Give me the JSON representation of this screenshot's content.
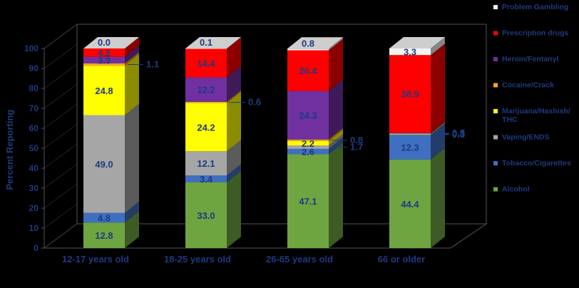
{
  "chart_data": {
    "type": "bar",
    "stacked": true,
    "three_d": true,
    "ylabel": "Percent Reporting",
    "ylim": [
      0,
      100
    ],
    "yticks": [
      "0",
      "10",
      "20",
      "30",
      "40",
      "50",
      "60",
      "70",
      "80",
      "90",
      "100"
    ],
    "categories": [
      "12-17 years old",
      "18-25 years old",
      "26-65 years old",
      "66 or older"
    ],
    "legend_position": "right",
    "series": [
      {
        "name": "Alcohol",
        "color": "#6FA541",
        "values": [
          12.8,
          33.0,
          47.1,
          44.4
        ],
        "labels": [
          "12.8",
          "33.0",
          "47.1",
          "44.4"
        ]
      },
      {
        "name": "Tobacco/Cigarettes",
        "color": "#3E6FC1",
        "values": [
          4.8,
          3.4,
          2.6,
          12.3
        ],
        "labels": [
          "4.8",
          "3.4",
          "2.6",
          "12.3"
        ]
      },
      {
        "name": "Vaping/ENDS",
        "color": "#A6A6A6",
        "values": [
          49.0,
          12.1,
          1.7,
          0.3
        ],
        "labels": [
          "49.0",
          "12.1",
          "1.7",
          "0.3"
        ]
      },
      {
        "name": "Marijuana/Hashish/THC",
        "color": "#FFFF00",
        "values": [
          24.8,
          24.2,
          2.2,
          0.3
        ],
        "labels": [
          "24.8",
          "24.2",
          "2.2",
          "0.3"
        ]
      },
      {
        "name": "Cocaine/Crack",
        "color": "#F5A623",
        "values": [
          1.1,
          0.6,
          0.8,
          0.0
        ],
        "labels": [
          "1.1",
          "0.6",
          "0.8",
          "0.0"
        ]
      },
      {
        "name": "Heroin/Fentanyl",
        "color": "#7030A0",
        "values": [
          3.3,
          12.2,
          24.3,
          0.5
        ],
        "labels": [
          "3.3",
          "12.2",
          "24.3",
          "0.5"
        ]
      },
      {
        "name": "Prescription drugs",
        "color": "#FF0000",
        "values": [
          4.2,
          14.4,
          20.4,
          38.9
        ],
        "labels": [
          "4.2",
          "14.4",
          "20.4",
          "38.9"
        ]
      },
      {
        "name": "Problem Gambling",
        "color": "#F2F2F2",
        "values": [
          0.0,
          0.1,
          0.8,
          3.3
        ],
        "labels": [
          "0.0",
          "0.1",
          "0.8",
          "3.3"
        ]
      }
    ]
  }
}
